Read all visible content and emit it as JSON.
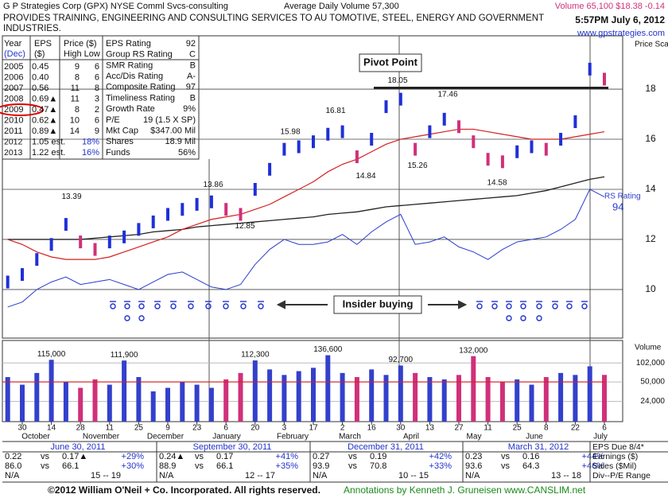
{
  "header": {
    "company": "G P Strategies Corp (GPX)  NYSE  Comml Svcs-consulting",
    "avg_volume": "Average Daily Volume 57,300",
    "quote": "Volume 65,100 $18.38 -0.14",
    "timestamp": "5:57PM July 6, 2012",
    "description": "PROVIDES TRAINING, ENGINEERING AND CONSULTING SERVICES TO AU TOMOTIVE, STEEL, ENERGY AND GOVERNMENT INDUSTRIES.",
    "website": "www.gpstrategies.com"
  },
  "fundamentals": {
    "headers": [
      [
        "Year",
        "EPS",
        "Price ($)"
      ],
      [
        "(Dec)",
        "($)",
        "High Low"
      ]
    ],
    "rows": [
      [
        "2005",
        "0.45",
        "9",
        "6"
      ],
      [
        "2006",
        "0.40",
        "8",
        "6"
      ],
      [
        "2007",
        "0.56",
        "11",
        "8"
      ],
      [
        "2008",
        "0.69▲",
        "11",
        "3"
      ],
      [
        "2009",
        "0.47▲",
        "8",
        "2"
      ],
      [
        "2010",
        "0.62▲",
        "10",
        "6"
      ],
      [
        "2011",
        "0.89▲",
        "14",
        "9"
      ],
      [
        "2012",
        "1.05 est.",
        "18%"
      ],
      [
        "2013",
        "1.22 est.",
        "16%"
      ]
    ],
    "ratings": [
      [
        "EPS Rating",
        "92"
      ],
      [
        "Group RS Rating",
        "C"
      ],
      [
        "SMR Rating",
        "B"
      ],
      [
        "Acc/Dis Rating",
        "A-"
      ],
      [
        "Composite Rating",
        "97"
      ],
      [
        "Timeliness Rating",
        "B"
      ],
      [
        "Growth Rate",
        "9%"
      ],
      [
        "P/E",
        "19 (1.5 X SP)"
      ],
      [
        "Mkt Cap",
        "$347.00 Mil"
      ],
      [
        "Shares",
        "18.9 Mil"
      ],
      [
        "Funds",
        "56%"
      ]
    ]
  },
  "chart_data": {
    "type": "stock",
    "price_axis_label": "Price Scale",
    "volume_axis_label": "Volume",
    "categories": [
      null,
      "30",
      null,
      "14",
      null,
      "28",
      null,
      "11",
      null,
      "25",
      null,
      "9",
      null,
      "23",
      null,
      "6",
      null,
      "20",
      null,
      "3",
      null,
      "17",
      null,
      "2",
      null,
      "16",
      null,
      "30",
      null,
      "13",
      null,
      "27",
      null,
      "11",
      null,
      "25",
      null,
      "8",
      null,
      "22",
      null,
      "6"
    ],
    "months": [
      "October",
      "November",
      "December",
      "January",
      "February",
      "March",
      "April",
      "May",
      "June",
      "July"
    ],
    "ylim": [
      8.06,
      20.13
    ],
    "yticks": [
      10,
      12,
      14,
      16,
      18
    ],
    "series": [
      {
        "name": "Price",
        "color": "#1f2fd8",
        "values": [
          10.3,
          10.6,
          11.2,
          11.8,
          12.6,
          11.9,
          11.6,
          11.9,
          12.1,
          12.4,
          12.7,
          13.0,
          13.2,
          13.4,
          13.5,
          13.2,
          13.0,
          14.0,
          14.8,
          15.6,
          15.7,
          15.9,
          16.2,
          16.3,
          15.3,
          16.0,
          17.3,
          17.6,
          15.6,
          16.3,
          16.8,
          16.5,
          15.9,
          15.2,
          15.1,
          15.5,
          15.7,
          15.6,
          16.0,
          16.7,
          18.8,
          18.4
        ]
      },
      {
        "name": "50-day",
        "color": "#d42020",
        "values": [
          12.0,
          11.8,
          11.5,
          11.3,
          11.2,
          11.2,
          11.2,
          11.3,
          11.5,
          11.7,
          11.9,
          12.1,
          12.4,
          12.6,
          12.8,
          12.9,
          13.0,
          13.2,
          13.4,
          13.7,
          14.0,
          14.3,
          14.7,
          15.0,
          15.2,
          15.5,
          15.8,
          16.0,
          16.1,
          16.2,
          16.3,
          16.4,
          16.4,
          16.3,
          16.2,
          16.1,
          16.0,
          16.0,
          16.0,
          16.1,
          16.2,
          16.3
        ]
      },
      {
        "name": "200-day",
        "color": "#222222",
        "values": [
          12.0,
          12.0,
          12.0,
          12.0,
          12.0,
          12.0,
          12.05,
          12.1,
          12.15,
          12.2,
          12.3,
          12.35,
          12.4,
          12.5,
          12.55,
          12.6,
          12.65,
          12.7,
          12.75,
          12.8,
          12.85,
          12.9,
          13.0,
          13.05,
          13.1,
          13.2,
          13.3,
          13.35,
          13.4,
          13.45,
          13.5,
          13.55,
          13.6,
          13.65,
          13.7,
          13.75,
          13.85,
          13.95,
          14.1,
          14.25,
          14.4,
          14.5
        ]
      },
      {
        "name": "RS Rating",
        "color": "#2a3ccc",
        "values": [
          9.3,
          9.5,
          10.0,
          10.3,
          10.5,
          10.2,
          10.3,
          10.4,
          10.2,
          10.0,
          10.3,
          10.6,
          10.7,
          10.4,
          10.1,
          10.0,
          10.2,
          11.0,
          11.6,
          12.0,
          11.8,
          11.8,
          11.9,
          12.2,
          11.8,
          12.3,
          12.7,
          13.0,
          11.8,
          11.9,
          12.1,
          11.7,
          11.5,
          11.2,
          11.6,
          11.9,
          12.0,
          12.1,
          12.4,
          12.8,
          14.0,
          13.7
        ]
      }
    ],
    "rs_rating": "94",
    "price_labels": [
      13.39,
      13.86,
      12.85,
      15.98,
      16.81,
      14.84,
      15.26,
      17.46,
      14.58
    ],
    "pivot_point": {
      "label": "Pivot Point",
      "price": 18.05
    },
    "insider_label": "Insider buying",
    "volume": {
      "vlim": [
        11200,
        238000
      ],
      "log": true,
      "ticks": [
        {
          "value": 102000,
          "label": "102,000"
        },
        {
          "value": 50000,
          "label": "50,000"
        },
        {
          "value": 24000,
          "label": "24,000"
        }
      ],
      "values": [
        60000,
        45000,
        70000,
        115000,
        50000,
        40000,
        55000,
        45000,
        111900,
        60000,
        35000,
        40000,
        50000,
        45000,
        40000,
        55000,
        70000,
        112300,
        80000,
        65000,
        75000,
        85000,
        136600,
        70000,
        60000,
        80000,
        65000,
        92700,
        70000,
        60000,
        55000,
        65000,
        132000,
        60000,
        50000,
        55000,
        45000,
        60000,
        70000,
        65000,
        90000,
        65100
      ],
      "value_labels": [
        null,
        null,
        null,
        "115,000",
        null,
        null,
        null,
        null,
        "111,900",
        null,
        null,
        null,
        null,
        null,
        null,
        null,
        null,
        "112,300",
        null,
        null,
        null,
        null,
        "136,600",
        null,
        null,
        null,
        null,
        "92,700",
        null,
        null,
        null,
        null,
        "132,000",
        null,
        null,
        null,
        null,
        null,
        null,
        null,
        null,
        null
      ],
      "average": 50000
    }
  },
  "quarters": [
    {
      "period": "June 30, 2011",
      "rows": [
        [
          "0.22",
          "vs",
          "0.17▲",
          "+29%"
        ],
        [
          "86.0",
          "vs",
          "66.1",
          "+30%"
        ],
        [
          "N/A",
          "15 -- 19"
        ]
      ]
    },
    {
      "period": "September 30, 2011",
      "rows": [
        [
          "0.24▲",
          "vs",
          "0.17",
          "+41%"
        ],
        [
          "88.9",
          "vs",
          "66.1",
          "+35%"
        ],
        [
          "N/A",
          "12 -- 17"
        ]
      ]
    },
    {
      "period": "December 31, 2011",
      "rows": [
        [
          "0.27",
          "vs",
          "0.19",
          "+42%"
        ],
        [
          "93.9",
          "vs",
          "70.8",
          "+33%"
        ],
        [
          "N/A",
          "10 -- 15"
        ]
      ]
    },
    {
      "period": "March 31, 2012",
      "rows": [
        [
          "0.23",
          "vs",
          "0.16",
          "+44%"
        ],
        [
          "93.6",
          "vs",
          "64.3",
          "+46%"
        ],
        [
          "N/A",
          "13 -- 18"
        ]
      ]
    }
  ],
  "quarter_legend": [
    "EPS Due 8/4*",
    "Earnings ($)",
    "Sales ($Mil)",
    "Div--P/E Range"
  ],
  "footer": {
    "copyright": "©2012 William O'Neil + Co. Incorporated. All rights reserved.",
    "annotations": "Annotations by Kenneth J. Gruneisen www.CANSLIM.net"
  }
}
